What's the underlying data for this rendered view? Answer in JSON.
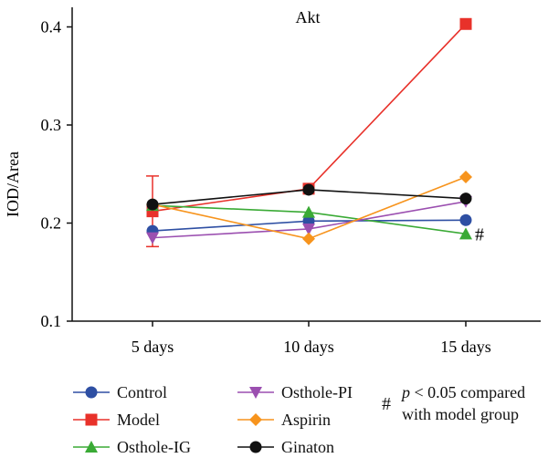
{
  "chart_data": {
    "type": "line",
    "title": "Akt",
    "ylabel": "IOD/Area",
    "xlabel": "",
    "categories": [
      "5 days",
      "10 days",
      "15 days"
    ],
    "ylim": [
      0.1,
      0.42
    ],
    "yticks": [
      "0.1",
      "0.2",
      "0.3",
      "0.4"
    ],
    "grid": false,
    "legend_position": "bottom",
    "series": [
      {
        "name": "Control",
        "values": [
          0.192,
          0.202,
          0.203
        ],
        "color": "#2e4fa3",
        "marker": "circle"
      },
      {
        "name": "Model",
        "values": [
          0.212,
          0.235,
          0.403
        ],
        "color": "#e8312a",
        "marker": "square",
        "error_bars": [
          0.036,
          null,
          null
        ]
      },
      {
        "name": "Osthole-IG",
        "values": [
          0.218,
          0.211,
          0.189
        ],
        "color": "#3aaa35",
        "marker": "triangle-up"
      },
      {
        "name": "Osthole-PI",
        "values": [
          0.185,
          0.194,
          0.222
        ],
        "color": "#9b4fb0",
        "marker": "triangle-down"
      },
      {
        "name": "Aspirin",
        "values": [
          0.219,
          0.184,
          0.247
        ],
        "color": "#f7941d",
        "marker": "diamond"
      },
      {
        "name": "Ginaton",
        "values": [
          0.219,
          0.234,
          0.225
        ],
        "color": "#111111",
        "marker": "circle"
      }
    ],
    "annotations": [
      {
        "text": "#",
        "category": "15 days",
        "y": 0.189
      }
    ]
  },
  "note": {
    "symbol": "#",
    "p_text": "p",
    "line1_rest": " < 0.05 compared",
    "line2": "with model group"
  }
}
